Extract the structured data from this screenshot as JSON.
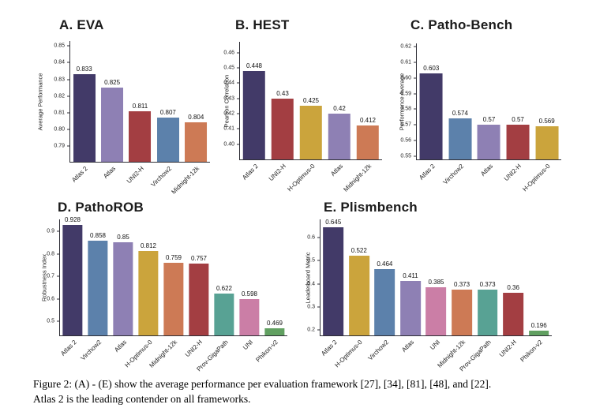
{
  "caption": {
    "line1": "Figure 2: (A) - (E) show the average performance per evaluation framework [27], [34], [81], [48], and [22].",
    "line2": "Atlas 2 is the leading contender on all frameworks."
  },
  "palette": {
    "Atlas 2": "#423a68",
    "Atlas": "#8e80b4",
    "UNI2-H": "#a33e42",
    "Virchow2": "#5c81ab",
    "Midnight-12k": "#cd7a55",
    "H-Optimus-0": "#cba43c",
    "Prov-GigaPath": "#58a294",
    "UNI": "#cb7ea6",
    "Phikon-v2": "#61a061"
  },
  "axis_color": "#2e2e36",
  "chart_data": [
    {
      "id": "eva",
      "type": "bar",
      "title": "A. EVA",
      "xlabel": "",
      "ylabel": "Average Performance",
      "grid": false,
      "legend": false,
      "ylim": [
        0.7805,
        0.853
      ],
      "yticks": [
        0.79,
        0.8,
        0.81,
        0.82,
        0.83,
        0.84,
        0.85
      ],
      "ytick_labels": [
        "0.79",
        "0.80",
        "0.81",
        "0.82",
        "0.83",
        "0.84",
        "0.85"
      ],
      "categories": [
        "Atlas 2",
        "Atlas",
        "UNI2-H",
        "Virchow2",
        "Midnight-12k"
      ],
      "values": [
        0.833,
        0.825,
        0.811,
        0.807,
        0.804
      ],
      "value_labels": [
        "0.833",
        "0.825",
        "0.811",
        "0.807",
        "0.804"
      ]
    },
    {
      "id": "hest",
      "type": "bar",
      "title": "B. HEST",
      "xlabel": "",
      "ylabel": "Pearson Correlation",
      "grid": false,
      "legend": false,
      "ylim": [
        0.39,
        0.467
      ],
      "yticks": [
        0.4,
        0.41,
        0.42,
        0.43,
        0.44,
        0.45,
        0.46
      ],
      "ytick_labels": [
        "0.40",
        "0.41",
        "0.42",
        "0.43",
        "0.44",
        "0.45",
        "0.46"
      ],
      "categories": [
        "Atlas 2",
        "UNI2-H",
        "H-Optimus-0",
        "Atlas",
        "Midnight-12k"
      ],
      "values": [
        0.448,
        0.43,
        0.425,
        0.42,
        0.412
      ],
      "value_labels": [
        "0.448",
        "0.43",
        "0.425",
        "0.42",
        "0.412"
      ]
    },
    {
      "id": "pathobench",
      "type": "bar",
      "title": "C. Patho-Bench",
      "xlabel": "",
      "ylabel": "Performance Average",
      "grid": false,
      "legend": false,
      "ylim": [
        0.548,
        0.622
      ],
      "yticks": [
        0.55,
        0.56,
        0.57,
        0.58,
        0.59,
        0.6,
        0.61,
        0.62
      ],
      "ytick_labels": [
        "0.55",
        "0.56",
        "0.57",
        "0.58",
        "0.59",
        "0.60",
        "0.61",
        "0.62"
      ],
      "categories": [
        "Atlas 2",
        "Virchow2",
        "Atlas",
        "UNI2-H",
        "H-Optimus-0"
      ],
      "values": [
        0.603,
        0.574,
        0.57,
        0.57,
        0.569
      ],
      "value_labels": [
        "0.603",
        "0.574",
        "0.57",
        "0.57",
        "0.569"
      ]
    },
    {
      "id": "pathorob",
      "type": "bar",
      "title": "D. PathoROB",
      "xlabel": "",
      "ylabel": "Robustness Index",
      "grid": false,
      "legend": false,
      "ylim": [
        0.437,
        0.953
      ],
      "yticks": [
        0.5,
        0.6,
        0.7,
        0.8,
        0.9
      ],
      "ytick_labels": [
        "0.5",
        "0.6",
        "0.7",
        "0.8",
        "0.9"
      ],
      "categories": [
        "Atlas 2",
        "Virchow2",
        "Atlas",
        "H-Optimus-0",
        "Midnight-12k",
        "UNI2-H",
        "Prov-GigaPath",
        "UNI",
        "Phikon-v2"
      ],
      "values": [
        0.928,
        0.858,
        0.85,
        0.812,
        0.759,
        0.757,
        0.622,
        0.598,
        0.469
      ],
      "value_labels": [
        "0.928",
        "0.858",
        "0.85",
        "0.812",
        "0.759",
        "0.757",
        "0.622",
        "0.598",
        "0.469"
      ]
    },
    {
      "id": "plismbench",
      "type": "bar",
      "title": "E. Plismbench",
      "xlabel": "",
      "ylabel": "Leaderboard Metric",
      "grid": false,
      "legend": false,
      "ylim": [
        0.176,
        0.679
      ],
      "yticks": [
        0.2,
        0.3,
        0.4,
        0.5,
        0.6
      ],
      "ytick_labels": [
        "0.2",
        "0.3",
        "0.4",
        "0.5",
        "0.6"
      ],
      "categories": [
        "Atlas 2",
        "H-Optimus-0",
        "Virchow2",
        "Atlas",
        "UNI",
        "Midnight-12k",
        "Prov-GigaPath",
        "UNI2-H",
        "Phikon-v2"
      ],
      "values": [
        0.645,
        0.522,
        0.464,
        0.411,
        0.385,
        0.373,
        0.373,
        0.36,
        0.196
      ],
      "value_labels": [
        "0.645",
        "0.522",
        "0.464",
        "0.411",
        "0.385",
        "0.373",
        "0.373",
        "0.36",
        "0.196"
      ]
    }
  ]
}
